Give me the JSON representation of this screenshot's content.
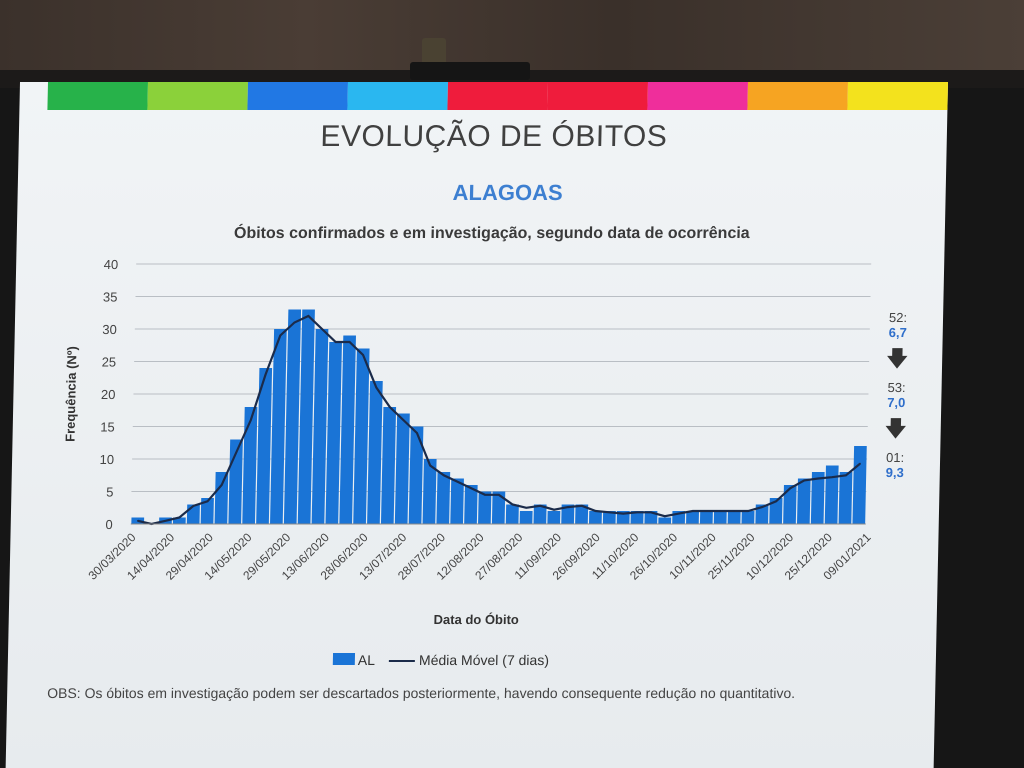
{
  "slide": {
    "title": "EVOLUÇÃO DE ÓBITOS",
    "region": "ALAGOAS",
    "subtitle": "Óbitos confirmados e em investigação, segundo data de ocorrência",
    "header_colors": [
      "#27b24a",
      "#8bd13a",
      "#2178e4",
      "#2ab7f0",
      "#ef1c3c",
      "#ef1c3c",
      "#ef2e9b",
      "#f6a422",
      "#f3e21d"
    ],
    "obs": "OBS: Os óbitos em investigação podem ser descartados posteriormente, havendo consequente redução no quantitativo."
  },
  "week_notes": [
    {
      "label": "52:",
      "value": "6,7"
    },
    {
      "label": "53:",
      "value": "7,0"
    },
    {
      "label": "01:",
      "value": "9,3"
    }
  ],
  "week_arrow_icon": "arrow-down-icon",
  "chart_data": {
    "type": "bar",
    "title": "Óbitos confirmados e em investigação, segundo data de ocorrência",
    "xlabel": "Data do Óbito",
    "ylabel": "Frequência (Nº)",
    "ylim": [
      0,
      40
    ],
    "yticks": [
      0,
      5,
      10,
      15,
      20,
      25,
      30,
      35,
      40
    ],
    "xticks": [
      "30/03/2020",
      "14/04/2020",
      "29/04/2020",
      "14/05/2020",
      "29/05/2020",
      "13/06/2020",
      "28/06/2020",
      "13/07/2020",
      "28/07/2020",
      "12/08/2020",
      "27/08/2020",
      "11/09/2020",
      "26/09/2020",
      "11/10/2020",
      "26/10/2020",
      "10/11/2020",
      "25/11/2020",
      "10/12/2020",
      "25/12/2020",
      "09/01/2021"
    ],
    "x_start": "30/03/2020",
    "x_end": "09/01/2021",
    "grid": true,
    "legend_position": "bottom",
    "bar_color": "#1a74d6",
    "line_color": "#1b2b4a",
    "series": [
      {
        "name": "AL",
        "type": "bar",
        "weekly_values": [
          1,
          0,
          1,
          1,
          3,
          4,
          8,
          13,
          18,
          24,
          30,
          33,
          33,
          30,
          28,
          29,
          27,
          22,
          18,
          17,
          15,
          10,
          8,
          7,
          6,
          5,
          5,
          3,
          2,
          3,
          2,
          3,
          3,
          2,
          2,
          2,
          2,
          2,
          1,
          2,
          2,
          2,
          2,
          2,
          2,
          3,
          4,
          6,
          7,
          8,
          9,
          8,
          12
        ]
      },
      {
        "name": "Média Móvel (7 dias)",
        "type": "line",
        "weekly_values": [
          0.5,
          0,
          0.5,
          1,
          2.8,
          3.5,
          6,
          11,
          16,
          23,
          29,
          31,
          32,
          30,
          28,
          28,
          26,
          21,
          18,
          16,
          14,
          9,
          7.5,
          6.5,
          5.5,
          4.5,
          4.5,
          3,
          2.5,
          2.8,
          2.2,
          2.6,
          2.8,
          2,
          1.8,
          1.6,
          1.8,
          1.8,
          1.2,
          1.6,
          2,
          2,
          2,
          2,
          2,
          2.6,
          3.5,
          5.5,
          6.7,
          7,
          7.2,
          7.5,
          9.3
        ]
      }
    ]
  },
  "legend": {
    "bar_label": "AL",
    "line_label": "Média Móvel (7 dias)"
  }
}
